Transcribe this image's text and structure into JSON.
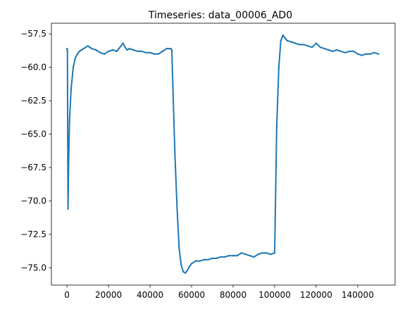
{
  "chart_data": {
    "type": "line",
    "title": "Timeseries: data_00006_AD0",
    "xlabel": "",
    "ylabel": "",
    "xlim": [
      -7500,
      158000
    ],
    "ylim": [
      -76.3,
      -56.7
    ],
    "grid": false,
    "legend": "none",
    "line_color": "#1f77b4",
    "xticks": [
      {
        "value": 0,
        "label": "0"
      },
      {
        "value": 20000,
        "label": "20000"
      },
      {
        "value": 40000,
        "label": "40000"
      },
      {
        "value": 60000,
        "label": "60000"
      },
      {
        "value": 80000,
        "label": "80000"
      },
      {
        "value": 100000,
        "label": "100000"
      },
      {
        "value": 120000,
        "label": "120000"
      },
      {
        "value": 140000,
        "label": "140000"
      }
    ],
    "yticks": [
      {
        "value": -57.5,
        "label": "−57.5"
      },
      {
        "value": -60.0,
        "label": "−60.0"
      },
      {
        "value": -62.5,
        "label": "−62.5"
      },
      {
        "value": -65.0,
        "label": "−65.0"
      },
      {
        "value": -67.5,
        "label": "−67.5"
      },
      {
        "value": -70.0,
        "label": "−70.0"
      },
      {
        "value": -72.5,
        "label": "−72.5"
      },
      {
        "value": -75.0,
        "label": "−75.0"
      }
    ],
    "series": [
      {
        "x": [
          0,
          200,
          500,
          800,
          1200,
          2000,
          3000,
          4000,
          5000,
          6000,
          7000,
          8000,
          9000,
          10000,
          11000,
          12000,
          14000,
          16000,
          18000,
          20000,
          22000,
          24000,
          25000,
          26000,
          27000,
          28000,
          29000,
          30000,
          32000,
          34000,
          36000,
          38000,
          40000,
          42000,
          44000,
          46000,
          48000,
          49000,
          50000,
          50500,
          51000,
          52000,
          53000,
          54000,
          55000,
          56000,
          57000,
          58000,
          59000,
          60000,
          62000,
          64000,
          66000,
          68000,
          70000,
          72000,
          74000,
          76000,
          78000,
          80000,
          82000,
          84000,
          86000,
          88000,
          90000,
          92000,
          94000,
          96000,
          98000,
          100000,
          100500,
          101000,
          102000,
          103000,
          104000,
          105000,
          106000,
          108000,
          110000,
          112000,
          114000,
          116000,
          118000,
          120000,
          122000,
          124000,
          126000,
          128000,
          130000,
          132000,
          134000,
          136000,
          138000,
          140000,
          142000,
          144000,
          146000,
          148000,
          150000
        ],
        "y": [
          -58.6,
          -58.7,
          -70.6,
          -67.0,
          -64.0,
          -61.6,
          -60.0,
          -59.3,
          -59.0,
          -58.8,
          -58.7,
          -58.6,
          -58.5,
          -58.4,
          -58.5,
          -58.6,
          -58.7,
          -58.9,
          -59.0,
          -58.8,
          -58.7,
          -58.8,
          -58.6,
          -58.4,
          -58.2,
          -58.5,
          -58.7,
          -58.6,
          -58.7,
          -58.8,
          -58.8,
          -58.9,
          -58.9,
          -59.0,
          -59.0,
          -58.8,
          -58.6,
          -58.6,
          -58.6,
          -58.7,
          -61.5,
          -66.5,
          -70.5,
          -73.5,
          -74.8,
          -75.3,
          -75.4,
          -75.2,
          -74.9,
          -74.7,
          -74.5,
          -74.5,
          -74.4,
          -74.4,
          -74.3,
          -74.3,
          -74.2,
          -74.2,
          -74.1,
          -74.1,
          -74.1,
          -73.9,
          -74.0,
          -74.1,
          -74.2,
          -74.0,
          -73.9,
          -73.9,
          -74.0,
          -73.9,
          -69.0,
          -64.5,
          -60.0,
          -58.0,
          -57.6,
          -57.8,
          -58.0,
          -58.1,
          -58.2,
          -58.3,
          -58.3,
          -58.4,
          -58.5,
          -58.2,
          -58.5,
          -58.6,
          -58.7,
          -58.8,
          -58.7,
          -58.8,
          -58.9,
          -58.8,
          -58.8,
          -59.0,
          -59.1,
          -59.0,
          -59.0,
          -58.9,
          -59.0
        ]
      }
    ]
  }
}
